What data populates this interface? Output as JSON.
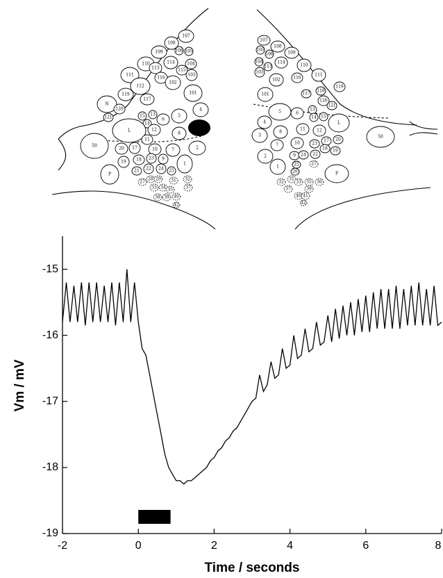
{
  "diagram": {
    "left_cells": [
      "107",
      "108",
      "109",
      "106",
      "105",
      "110",
      "114",
      "104",
      "111",
      "113",
      "116",
      "115",
      "103",
      "112",
      "102",
      "119",
      "117",
      "101",
      "N",
      "120",
      "121",
      "5",
      "4",
      "6",
      "15",
      "13",
      "14",
      "12",
      "8",
      "2",
      "L",
      "11",
      "50",
      "20",
      "17",
      "10",
      "7",
      "19",
      "18",
      "23",
      "9",
      "1",
      "21",
      "22",
      "24",
      "25",
      "P",
      "27",
      "28",
      "29",
      "31",
      "32",
      "33",
      "34",
      "35",
      "37",
      "38",
      "39",
      "40",
      "42"
    ],
    "right_cells": [
      "107",
      "108",
      "109",
      "105",
      "106",
      "114",
      "110",
      "104",
      "113",
      "103",
      "102",
      "111",
      "116",
      "101",
      "119",
      "118",
      "117",
      "120",
      "121",
      "5",
      "6",
      "13",
      "14",
      "15",
      "4",
      "L",
      "3",
      "8",
      "11",
      "12",
      "50",
      "7",
      "10",
      "23",
      "17",
      "20",
      "18",
      "19",
      "2",
      "9",
      "24",
      "22",
      "1",
      "25",
      "26",
      "27",
      "P",
      "31",
      "32",
      "33",
      "35",
      "36",
      "37",
      "39",
      "40",
      "41",
      "42"
    ]
  },
  "chart_data": {
    "type": "line",
    "xlabel": "Time / seconds",
    "ylabel": "Vm / mV",
    "xlim": [
      -2,
      8
    ],
    "ylim": [
      -19,
      -14.5
    ],
    "xticks": [
      -2,
      0,
      2,
      4,
      6,
      8
    ],
    "yticks": [
      -15,
      -16,
      -17,
      -18,
      -19
    ],
    "series": [
      {
        "color": "#000000",
        "x": [
          -2.0,
          -1.9,
          -1.8,
          -1.7,
          -1.6,
          -1.5,
          -1.4,
          -1.3,
          -1.2,
          -1.1,
          -1.0,
          -0.9,
          -0.8,
          -0.7,
          -0.6,
          -0.5,
          -0.4,
          -0.3,
          -0.2,
          -0.1,
          0.0,
          0.1,
          0.2,
          0.3,
          0.4,
          0.5,
          0.6,
          0.7,
          0.8,
          0.9,
          1.0,
          1.1,
          1.2,
          1.3,
          1.4,
          1.5,
          1.6,
          1.7,
          1.8,
          1.9,
          2.0,
          2.1,
          2.2,
          2.3,
          2.4,
          2.5,
          2.6,
          2.7,
          2.8,
          2.9,
          3.0,
          3.1,
          3.2,
          3.3,
          3.4,
          3.5,
          3.6,
          3.7,
          3.8,
          3.9,
          4.0,
          4.1,
          4.2,
          4.3,
          4.4,
          4.5,
          4.6,
          4.7,
          4.8,
          4.9,
          5.0,
          5.1,
          5.2,
          5.3,
          5.4,
          5.5,
          5.6,
          5.7,
          5.8,
          5.9,
          6.0,
          6.1,
          6.2,
          6.3,
          6.4,
          6.5,
          6.6,
          6.7,
          6.8,
          6.9,
          7.0,
          7.1,
          7.2,
          7.3,
          7.4,
          7.5,
          7.6,
          7.7,
          7.8,
          7.9,
          8.0
        ],
        "values": [
          -15.8,
          -15.2,
          -15.8,
          -15.25,
          -15.8,
          -15.2,
          -15.85,
          -15.2,
          -15.8,
          -15.2,
          -15.8,
          -15.25,
          -15.8,
          -15.2,
          -15.85,
          -15.2,
          -15.8,
          -15.0,
          -15.8,
          -15.2,
          -15.8,
          -16.2,
          -16.3,
          -16.6,
          -16.9,
          -17.2,
          -17.5,
          -17.8,
          -18.0,
          -18.1,
          -18.2,
          -18.2,
          -18.25,
          -18.2,
          -18.2,
          -18.15,
          -18.1,
          -18.05,
          -18.0,
          -17.9,
          -17.85,
          -17.75,
          -17.7,
          -17.6,
          -17.55,
          -17.45,
          -17.4,
          -17.3,
          -17.2,
          -17.1,
          -17.0,
          -16.95,
          -16.6,
          -16.85,
          -16.75,
          -16.4,
          -16.65,
          -16.6,
          -16.2,
          -16.5,
          -16.45,
          -16.0,
          -16.35,
          -16.3,
          -15.9,
          -16.25,
          -16.2,
          -15.8,
          -16.15,
          -16.1,
          -15.7,
          -16.1,
          -15.6,
          -16.05,
          -15.55,
          -16.0,
          -15.5,
          -16.0,
          -15.45,
          -15.95,
          -15.4,
          -15.95,
          -15.35,
          -15.9,
          -15.3,
          -15.9,
          -15.3,
          -15.9,
          -15.25,
          -15.9,
          -15.3,
          -15.85,
          -15.25,
          -15.85,
          -15.2,
          -15.85,
          -15.3,
          -15.85,
          -15.25,
          -15.85,
          -15.8
        ]
      }
    ],
    "stimulus": [
      0,
      0.85
    ]
  }
}
